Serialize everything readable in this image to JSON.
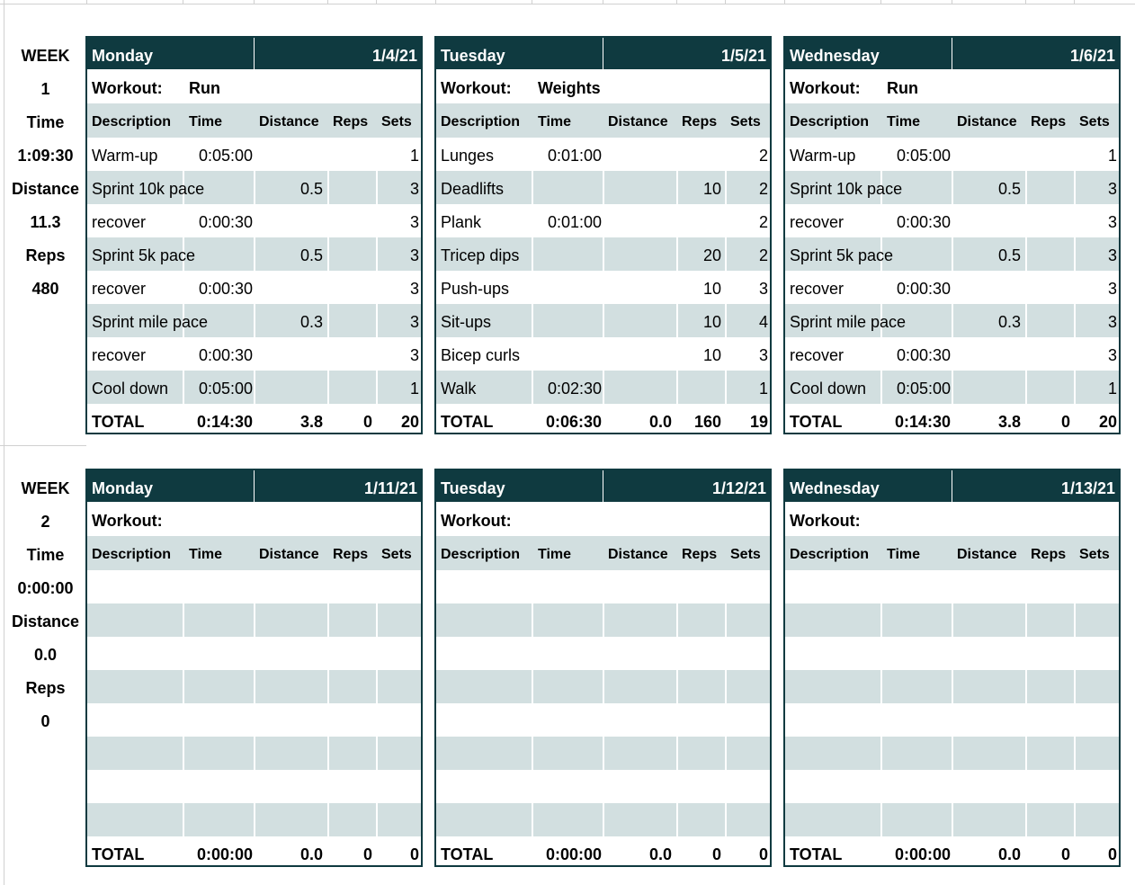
{
  "weeks": [
    {
      "label": "WEEK",
      "number": "1",
      "time_label": "Time",
      "time": "1:09:30",
      "distance_label": "Distance",
      "distance": "11.3",
      "reps_label": "Reps",
      "reps": "480",
      "days": [
        {
          "day": "Monday",
          "date": "1/4/21",
          "workout_label": "Workout:",
          "workout": "Run",
          "headers": [
            "Description",
            "Time",
            "Distance",
            "Reps",
            "Sets"
          ],
          "rows": [
            [
              "Warm-up",
              "0:05:00",
              "",
              "",
              "1"
            ],
            [
              "Sprint 10k pace",
              "",
              "0.5",
              "",
              "3"
            ],
            [
              "recover",
              "0:00:30",
              "",
              "",
              "3"
            ],
            [
              "Sprint 5k pace",
              "",
              "0.5",
              "",
              "3"
            ],
            [
              "recover",
              "0:00:30",
              "",
              "",
              "3"
            ],
            [
              "Sprint mile pace",
              "",
              "0.3",
              "",
              "3"
            ],
            [
              "recover",
              "0:00:30",
              "",
              "",
              "3"
            ],
            [
              "Cool down",
              "0:05:00",
              "",
              "",
              "1"
            ]
          ],
          "total": [
            "TOTAL",
            "0:14:30",
            "3.8",
            "0",
            "20"
          ]
        },
        {
          "day": "Tuesday",
          "date": "1/5/21",
          "workout_label": "Workout:",
          "workout": "Weights",
          "headers": [
            "Description",
            "Time",
            "Distance",
            "Reps",
            "Sets"
          ],
          "rows": [
            [
              "Lunges",
              "0:01:00",
              "",
              "",
              "2"
            ],
            [
              "Deadlifts",
              "",
              "",
              "10",
              "2"
            ],
            [
              "Plank",
              "0:01:00",
              "",
              "",
              "2"
            ],
            [
              "Tricep dips",
              "",
              "",
              "20",
              "2"
            ],
            [
              "Push-ups",
              "",
              "",
              "10",
              "3"
            ],
            [
              "Sit-ups",
              "",
              "",
              "10",
              "4"
            ],
            [
              "Bicep curls",
              "",
              "",
              "10",
              "3"
            ],
            [
              "Walk",
              "0:02:30",
              "",
              "",
              "1"
            ]
          ],
          "total": [
            "TOTAL",
            "0:06:30",
            "0.0",
            "160",
            "19"
          ]
        },
        {
          "day": "Wednesday",
          "date": "1/6/21",
          "workout_label": "Workout:",
          "workout": "Run",
          "headers": [
            "Description",
            "Time",
            "Distance",
            "Reps",
            "Sets"
          ],
          "rows": [
            [
              "Warm-up",
              "0:05:00",
              "",
              "",
              "1"
            ],
            [
              "Sprint 10k pace",
              "",
              "0.5",
              "",
              "3"
            ],
            [
              "recover",
              "0:00:30",
              "",
              "",
              "3"
            ],
            [
              "Sprint 5k pace",
              "",
              "0.5",
              "",
              "3"
            ],
            [
              "recover",
              "0:00:30",
              "",
              "",
              "3"
            ],
            [
              "Sprint mile pace",
              "",
              "0.3",
              "",
              "3"
            ],
            [
              "recover",
              "0:00:30",
              "",
              "",
              "3"
            ],
            [
              "Cool down",
              "0:05:00",
              "",
              "",
              "1"
            ]
          ],
          "total": [
            "TOTAL",
            "0:14:30",
            "3.8",
            "0",
            "20"
          ]
        }
      ]
    },
    {
      "label": "WEEK",
      "number": "2",
      "time_label": "Time",
      "time": "0:00:00",
      "distance_label": "Distance",
      "distance": "0.0",
      "reps_label": "Reps",
      "reps": "0",
      "days": [
        {
          "day": "Monday",
          "date": "1/11/21",
          "workout_label": "Workout:",
          "workout": "",
          "headers": [
            "Description",
            "Time",
            "Distance",
            "Reps",
            "Sets"
          ],
          "rows": [
            [
              "",
              "",
              "",
              "",
              ""
            ],
            [
              "",
              "",
              "",
              "",
              ""
            ],
            [
              "",
              "",
              "",
              "",
              ""
            ],
            [
              "",
              "",
              "",
              "",
              ""
            ],
            [
              "",
              "",
              "",
              "",
              ""
            ],
            [
              "",
              "",
              "",
              "",
              ""
            ],
            [
              "",
              "",
              "",
              "",
              ""
            ],
            [
              "",
              "",
              "",
              "",
              ""
            ]
          ],
          "total": [
            "TOTAL",
            "0:00:00",
            "0.0",
            "0",
            "0"
          ]
        },
        {
          "day": "Tuesday",
          "date": "1/12/21",
          "workout_label": "Workout:",
          "workout": "",
          "headers": [
            "Description",
            "Time",
            "Distance",
            "Reps",
            "Sets"
          ],
          "rows": [
            [
              "",
              "",
              "",
              "",
              ""
            ],
            [
              "",
              "",
              "",
              "",
              ""
            ],
            [
              "",
              "",
              "",
              "",
              ""
            ],
            [
              "",
              "",
              "",
              "",
              ""
            ],
            [
              "",
              "",
              "",
              "",
              ""
            ],
            [
              "",
              "",
              "",
              "",
              ""
            ],
            [
              "",
              "",
              "",
              "",
              ""
            ],
            [
              "",
              "",
              "",
              "",
              ""
            ]
          ],
          "total": [
            "TOTAL",
            "0:00:00",
            "0.0",
            "0",
            "0"
          ]
        },
        {
          "day": "Wednesday",
          "date": "1/13/21",
          "workout_label": "Workout:",
          "workout": "",
          "headers": [
            "Description",
            "Time",
            "Distance",
            "Reps",
            "Sets"
          ],
          "rows": [
            [
              "",
              "",
              "",
              "",
              ""
            ],
            [
              "",
              "",
              "",
              "",
              ""
            ],
            [
              "",
              "",
              "",
              "",
              ""
            ],
            [
              "",
              "",
              "",
              "",
              ""
            ],
            [
              "",
              "",
              "",
              "",
              ""
            ],
            [
              "",
              "",
              "",
              "",
              ""
            ],
            [
              "",
              "",
              "",
              "",
              ""
            ],
            [
              "",
              "",
              "",
              "",
              ""
            ]
          ],
          "total": [
            "TOTAL",
            "0:00:00",
            "0.0",
            "0",
            "0"
          ]
        }
      ]
    }
  ]
}
